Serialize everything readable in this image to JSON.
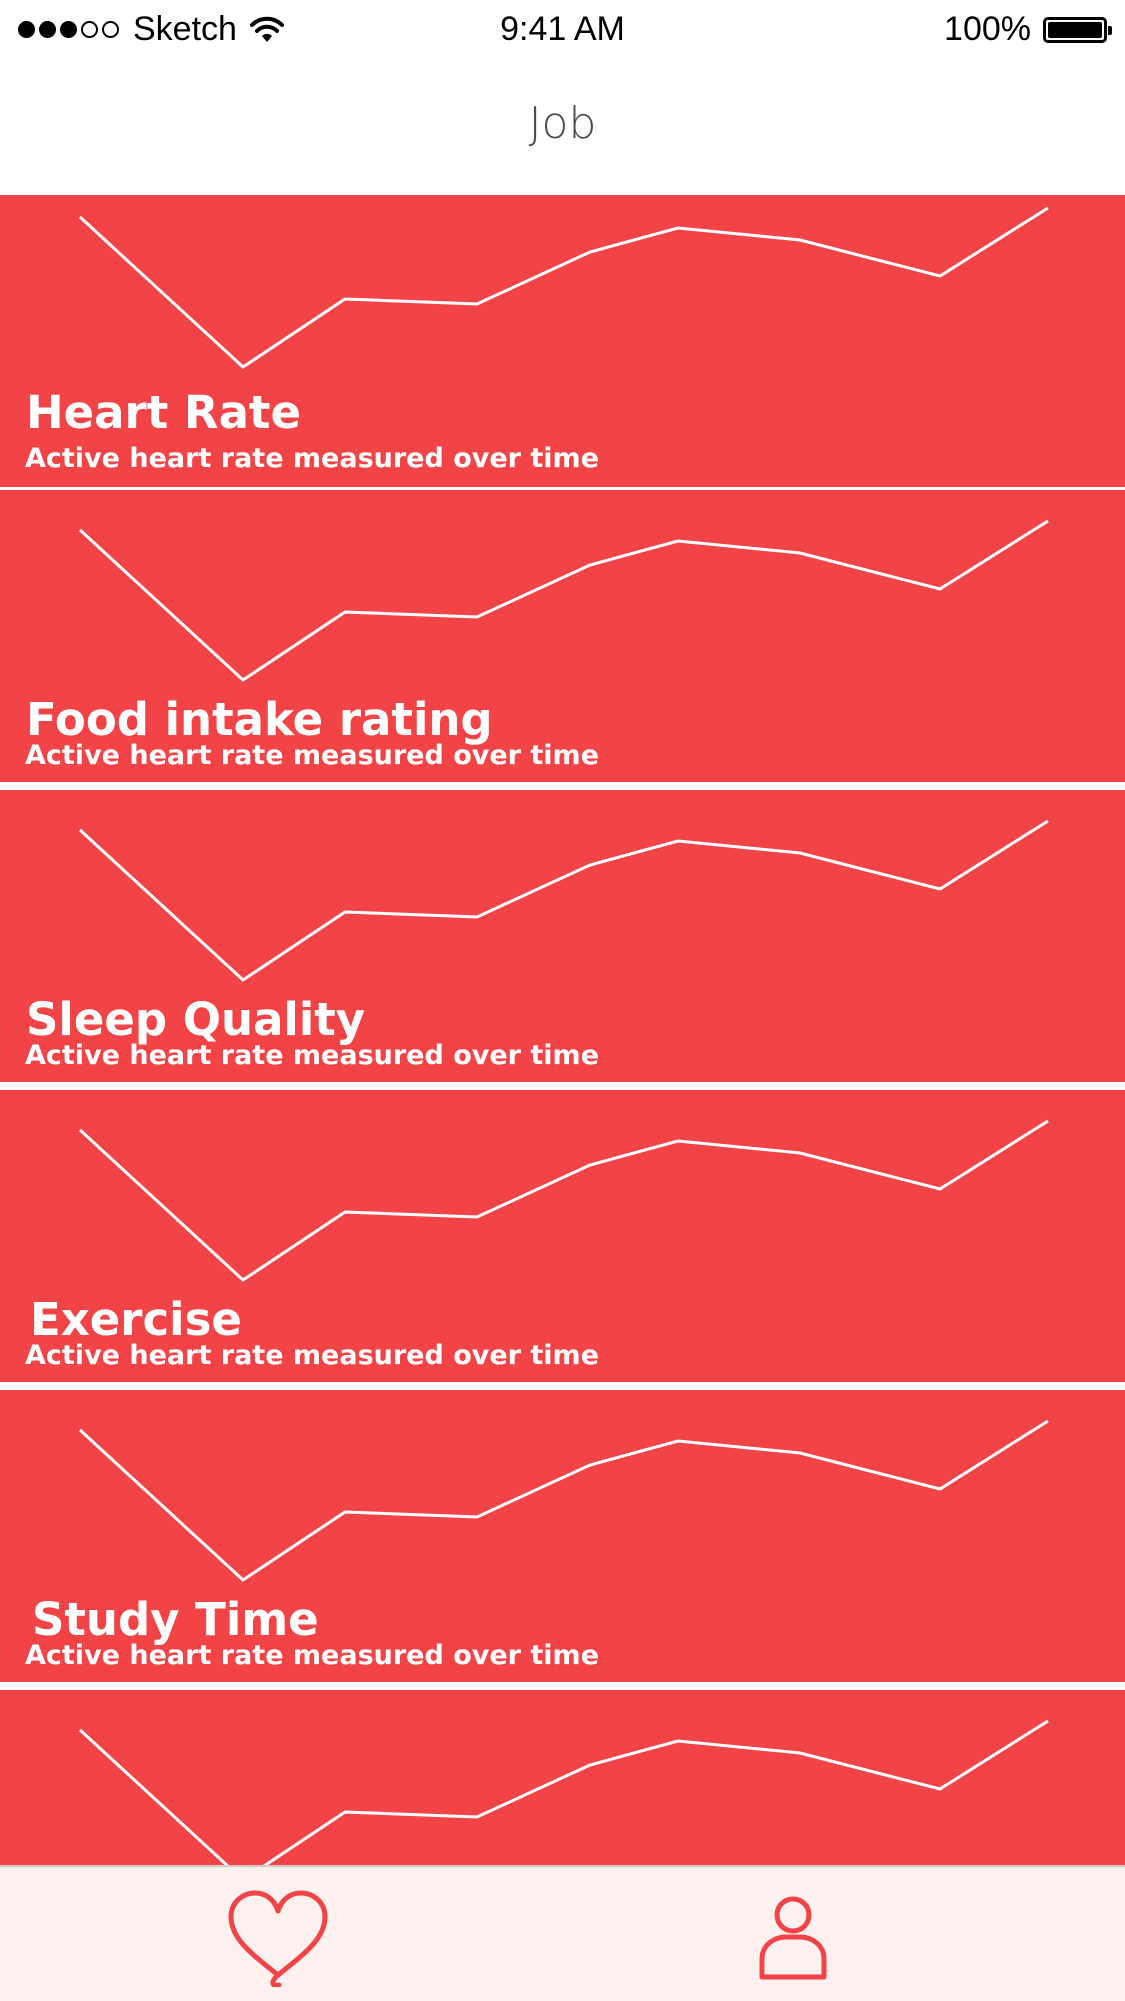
{
  "status_bar": {
    "carrier": "Sketch",
    "time": "9:41 AM",
    "battery": "100%",
    "signal_bars_filled": 3,
    "signal_bars_total": 5
  },
  "nav": {
    "title": "Job"
  },
  "accent_color": "#f24446",
  "cards": [
    {
      "title": "Heart Rate",
      "subtitle": "Active heart rate measured over time"
    },
    {
      "title": "Food intake rating",
      "subtitle": "Active heart rate measured over time"
    },
    {
      "title": "Sleep Quality",
      "subtitle": "Active heart rate measured over time"
    },
    {
      "title": "Exercise",
      "subtitle": "Active heart rate measured over time"
    },
    {
      "title": "Study Time",
      "subtitle": "Active heart rate measured over time"
    },
    {
      "title": "",
      "subtitle": ""
    }
  ],
  "tabs": [
    {
      "icon": "heart-icon",
      "active": true
    },
    {
      "icon": "profile-icon",
      "active": false
    }
  ]
}
